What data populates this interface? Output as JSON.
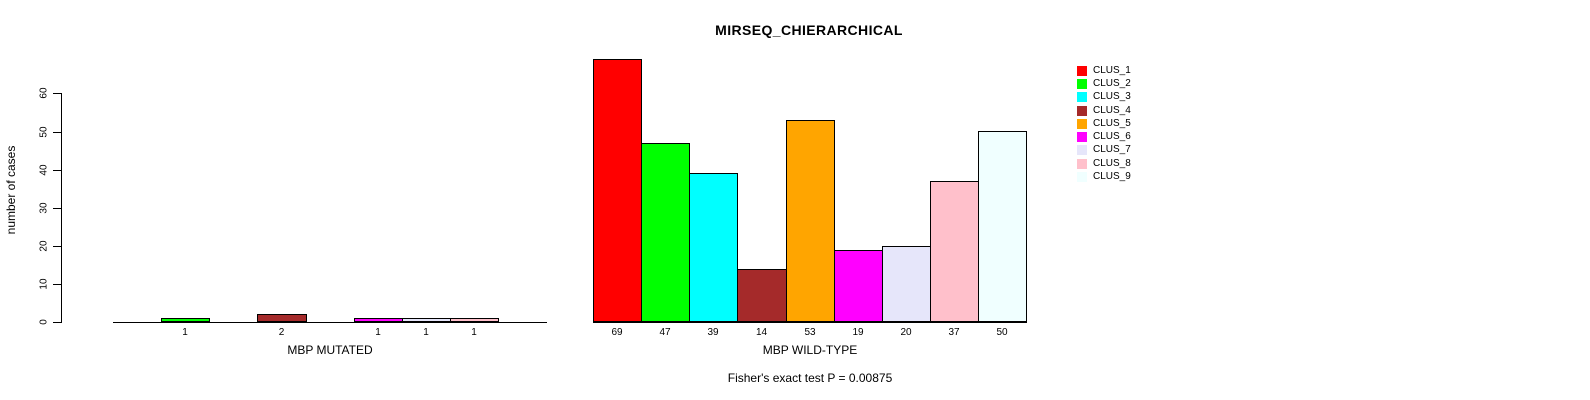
{
  "figure": {
    "title": "MIRSEQ_CHIERARCHICAL",
    "annotation": "Fisher's exact test P = 0.00875",
    "ylabel": "number of cases"
  },
  "chart_data": {
    "type": "bar",
    "title": "MIRSEQ_CHIERARCHICAL",
    "annotation": "Fisher's exact test P = 0.00875",
    "ylabel": "number of cases",
    "ylim": [
      0,
      69
    ],
    "yticks": [
      0,
      10,
      20,
      30,
      40,
      50,
      60
    ],
    "grid": false,
    "legend_position": "top-right",
    "clusters": [
      "CLUS_1",
      "CLUS_2",
      "CLUS_3",
      "CLUS_4",
      "CLUS_5",
      "CLUS_6",
      "CLUS_7",
      "CLUS_8",
      "CLUS_9"
    ],
    "colors": [
      "#FF0000",
      "#00FF00",
      "#00FFFF",
      "#A52A2A",
      "#FFA500",
      "#FF00FF",
      "#E6E6FA",
      "#FFC0CB",
      "#F0FFFF"
    ],
    "groups": [
      {
        "xlabel": "MBP MUTATED",
        "values": [
          0,
          1,
          0,
          2,
          0,
          1,
          1,
          1,
          0
        ],
        "bar_labels": [
          "",
          "1",
          "",
          "2",
          "",
          "1",
          "1",
          "1",
          ""
        ]
      },
      {
        "xlabel": "MBP WILD-TYPE",
        "values": [
          69,
          47,
          39,
          14,
          53,
          19,
          20,
          37,
          50
        ],
        "bar_labels": [
          "69",
          "47",
          "39",
          "14",
          "53",
          "19",
          "20",
          "37",
          "50"
        ]
      }
    ]
  }
}
